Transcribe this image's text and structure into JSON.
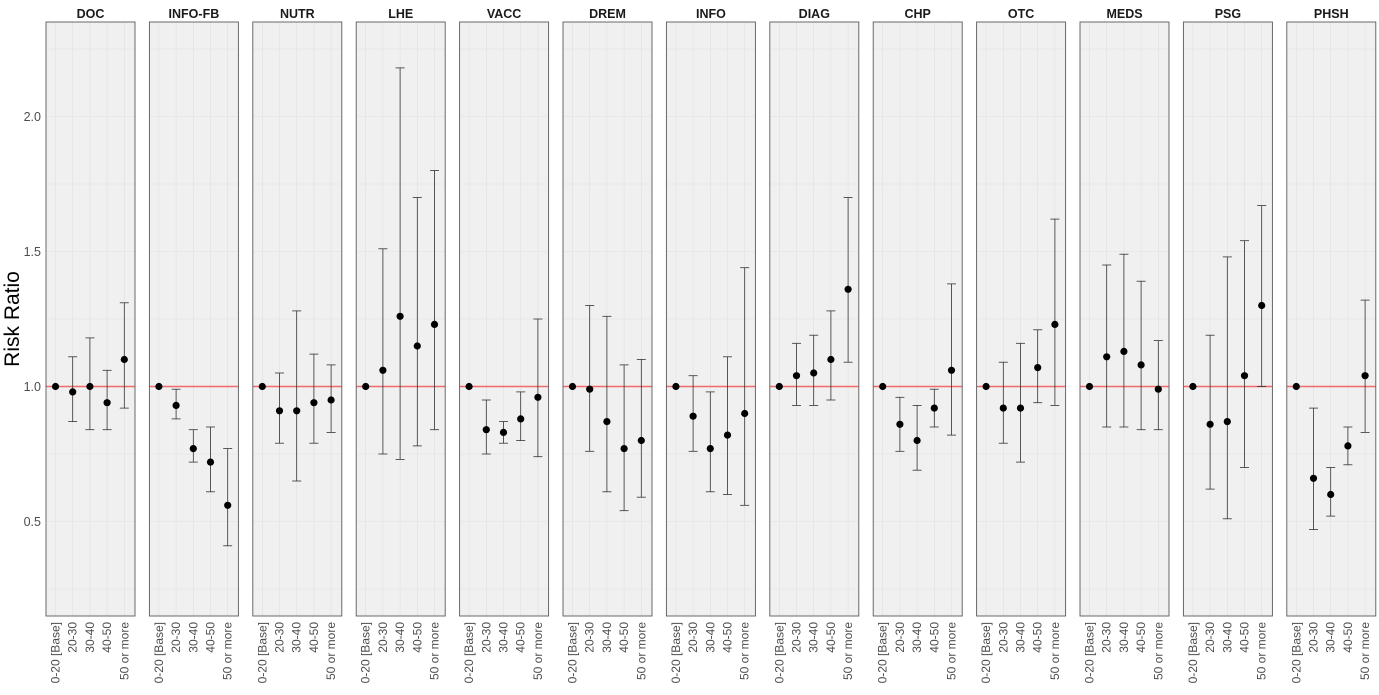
{
  "chart_data": {
    "type": "scatter",
    "ylabel": "Risk Ratio",
    "xlabel": "",
    "ylim": [
      0.15,
      2.35
    ],
    "yticks": [
      0.5,
      1.0,
      1.5,
      2.0
    ],
    "ytick_labels": [
      "0.5",
      "1.0",
      "1.5",
      "2.0"
    ],
    "reference_line": 1.0,
    "reference_line_color": "#f26b6b",
    "panel_background": "#f0f0f0",
    "point_color": "#000000",
    "errorbar_color": "#333333",
    "grid": true,
    "categories": [
      "0-20 [Base]",
      "20-30",
      "30-40",
      "40-50",
      "50 or more"
    ],
    "panels": [
      {
        "name": "DOC",
        "values": [
          1.0,
          0.98,
          1.0,
          0.94,
          1.1
        ],
        "lower": [
          null,
          0.87,
          0.84,
          0.84,
          0.92
        ],
        "upper": [
          null,
          1.11,
          1.18,
          1.06,
          1.31
        ]
      },
      {
        "name": "INFO-FB",
        "values": [
          1.0,
          0.93,
          0.77,
          0.72,
          0.56
        ],
        "lower": [
          null,
          0.88,
          0.72,
          0.61,
          0.41
        ],
        "upper": [
          null,
          0.99,
          0.84,
          0.85,
          0.77
        ]
      },
      {
        "name": "NUTR",
        "values": [
          1.0,
          0.91,
          0.91,
          0.94,
          0.95
        ],
        "lower": [
          null,
          0.79,
          0.65,
          0.79,
          0.83
        ],
        "upper": [
          null,
          1.05,
          1.28,
          1.12,
          1.08
        ]
      },
      {
        "name": "LHE",
        "values": [
          1.0,
          1.06,
          1.26,
          1.15,
          1.23
        ],
        "lower": [
          null,
          0.75,
          0.73,
          0.78,
          0.84
        ],
        "upper": [
          null,
          1.51,
          2.18,
          1.7,
          1.8
        ]
      },
      {
        "name": "VACC",
        "values": [
          1.0,
          0.84,
          0.83,
          0.88,
          0.96
        ],
        "lower": [
          null,
          0.75,
          0.79,
          0.8,
          0.74
        ],
        "upper": [
          null,
          0.95,
          0.87,
          0.98,
          1.25
        ]
      },
      {
        "name": "DREM",
        "values": [
          1.0,
          0.99,
          0.87,
          0.77,
          0.8
        ],
        "lower": [
          null,
          0.76,
          0.61,
          0.54,
          0.59
        ],
        "upper": [
          null,
          1.3,
          1.26,
          1.08,
          1.1
        ]
      },
      {
        "name": "INFO",
        "values": [
          1.0,
          0.89,
          0.77,
          0.82,
          0.9
        ],
        "lower": [
          null,
          0.76,
          0.61,
          0.6,
          0.56
        ],
        "upper": [
          null,
          1.04,
          0.98,
          1.11,
          1.44
        ]
      },
      {
        "name": "DIAG",
        "values": [
          1.0,
          1.04,
          1.05,
          1.1,
          1.36
        ],
        "lower": [
          null,
          0.93,
          0.93,
          0.95,
          1.09
        ],
        "upper": [
          null,
          1.16,
          1.19,
          1.28,
          1.7
        ]
      },
      {
        "name": "CHP",
        "values": [
          1.0,
          0.86,
          0.8,
          0.92,
          1.06
        ],
        "lower": [
          null,
          0.76,
          0.69,
          0.85,
          0.82
        ],
        "upper": [
          null,
          0.96,
          0.93,
          0.99,
          1.38
        ]
      },
      {
        "name": "OTC",
        "values": [
          1.0,
          0.92,
          0.92,
          1.07,
          1.23
        ],
        "lower": [
          null,
          0.79,
          0.72,
          0.94,
          0.93
        ],
        "upper": [
          null,
          1.09,
          1.16,
          1.21,
          1.62
        ]
      },
      {
        "name": "MEDS",
        "values": [
          1.0,
          1.11,
          1.13,
          1.08,
          0.99
        ],
        "lower": [
          null,
          0.85,
          0.85,
          0.84,
          0.84
        ],
        "upper": [
          null,
          1.45,
          1.49,
          1.39,
          1.17
        ]
      },
      {
        "name": "PSG",
        "values": [
          1.0,
          0.86,
          0.87,
          1.04,
          1.3
        ],
        "lower": [
          null,
          0.62,
          0.51,
          0.7,
          1.0
        ],
        "upper": [
          null,
          1.19,
          1.48,
          1.54,
          1.67
        ]
      },
      {
        "name": "PHSH",
        "values": [
          1.0,
          0.66,
          0.6,
          0.78,
          1.04
        ],
        "lower": [
          null,
          0.47,
          0.52,
          0.71,
          0.83
        ],
        "upper": [
          null,
          0.92,
          0.7,
          0.85,
          1.32
        ]
      }
    ]
  }
}
